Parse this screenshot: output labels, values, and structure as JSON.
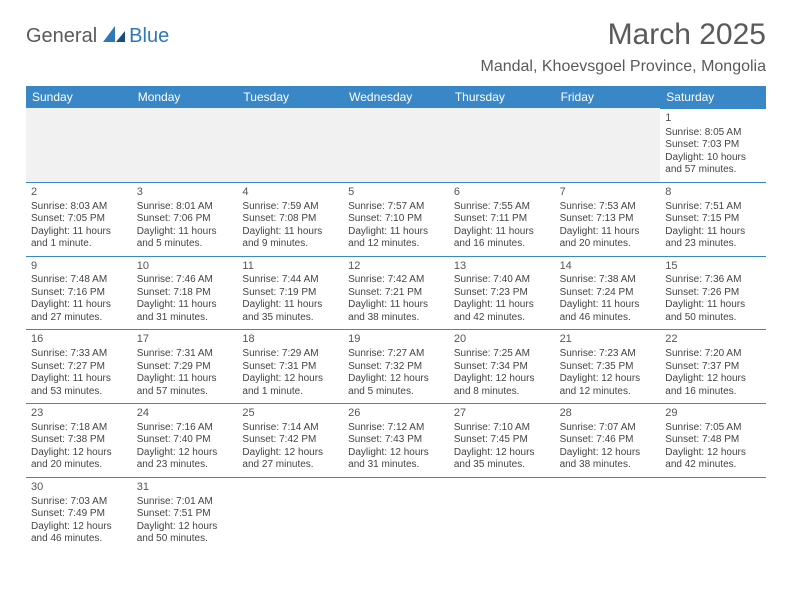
{
  "brand": {
    "part1": "General",
    "part2": "Blue"
  },
  "title": "March 2025",
  "location": "Mandal, Khoevsgoel Province, Mongolia",
  "colors": {
    "header_bg": "#3a87c8",
    "header_text": "#ffffff",
    "cell_border": "#3a87c8",
    "empty_bg": "#f1f1f1",
    "text": "#444444",
    "title_text": "#5a5a5a",
    "brand_blue": "#2f78b7"
  },
  "dayNames": [
    "Sunday",
    "Monday",
    "Tuesday",
    "Wednesday",
    "Thursday",
    "Friday",
    "Saturday"
  ],
  "weeks": [
    [
      null,
      null,
      null,
      null,
      null,
      null,
      {
        "n": "1",
        "sr": "Sunrise: 8:05 AM",
        "ss": "Sunset: 7:03 PM",
        "d1": "Daylight: 10 hours",
        "d2": "and 57 minutes."
      }
    ],
    [
      {
        "n": "2",
        "sr": "Sunrise: 8:03 AM",
        "ss": "Sunset: 7:05 PM",
        "d1": "Daylight: 11 hours",
        "d2": "and 1 minute."
      },
      {
        "n": "3",
        "sr": "Sunrise: 8:01 AM",
        "ss": "Sunset: 7:06 PM",
        "d1": "Daylight: 11 hours",
        "d2": "and 5 minutes."
      },
      {
        "n": "4",
        "sr": "Sunrise: 7:59 AM",
        "ss": "Sunset: 7:08 PM",
        "d1": "Daylight: 11 hours",
        "d2": "and 9 minutes."
      },
      {
        "n": "5",
        "sr": "Sunrise: 7:57 AM",
        "ss": "Sunset: 7:10 PM",
        "d1": "Daylight: 11 hours",
        "d2": "and 12 minutes."
      },
      {
        "n": "6",
        "sr": "Sunrise: 7:55 AM",
        "ss": "Sunset: 7:11 PM",
        "d1": "Daylight: 11 hours",
        "d2": "and 16 minutes."
      },
      {
        "n": "7",
        "sr": "Sunrise: 7:53 AM",
        "ss": "Sunset: 7:13 PM",
        "d1": "Daylight: 11 hours",
        "d2": "and 20 minutes."
      },
      {
        "n": "8",
        "sr": "Sunrise: 7:51 AM",
        "ss": "Sunset: 7:15 PM",
        "d1": "Daylight: 11 hours",
        "d2": "and 23 minutes."
      }
    ],
    [
      {
        "n": "9",
        "sr": "Sunrise: 7:48 AM",
        "ss": "Sunset: 7:16 PM",
        "d1": "Daylight: 11 hours",
        "d2": "and 27 minutes."
      },
      {
        "n": "10",
        "sr": "Sunrise: 7:46 AM",
        "ss": "Sunset: 7:18 PM",
        "d1": "Daylight: 11 hours",
        "d2": "and 31 minutes."
      },
      {
        "n": "11",
        "sr": "Sunrise: 7:44 AM",
        "ss": "Sunset: 7:19 PM",
        "d1": "Daylight: 11 hours",
        "d2": "and 35 minutes."
      },
      {
        "n": "12",
        "sr": "Sunrise: 7:42 AM",
        "ss": "Sunset: 7:21 PM",
        "d1": "Daylight: 11 hours",
        "d2": "and 38 minutes."
      },
      {
        "n": "13",
        "sr": "Sunrise: 7:40 AM",
        "ss": "Sunset: 7:23 PM",
        "d1": "Daylight: 11 hours",
        "d2": "and 42 minutes."
      },
      {
        "n": "14",
        "sr": "Sunrise: 7:38 AM",
        "ss": "Sunset: 7:24 PM",
        "d1": "Daylight: 11 hours",
        "d2": "and 46 minutes."
      },
      {
        "n": "15",
        "sr": "Sunrise: 7:36 AM",
        "ss": "Sunset: 7:26 PM",
        "d1": "Daylight: 11 hours",
        "d2": "and 50 minutes."
      }
    ],
    [
      {
        "n": "16",
        "sr": "Sunrise: 7:33 AM",
        "ss": "Sunset: 7:27 PM",
        "d1": "Daylight: 11 hours",
        "d2": "and 53 minutes."
      },
      {
        "n": "17",
        "sr": "Sunrise: 7:31 AM",
        "ss": "Sunset: 7:29 PM",
        "d1": "Daylight: 11 hours",
        "d2": "and 57 minutes."
      },
      {
        "n": "18",
        "sr": "Sunrise: 7:29 AM",
        "ss": "Sunset: 7:31 PM",
        "d1": "Daylight: 12 hours",
        "d2": "and 1 minute."
      },
      {
        "n": "19",
        "sr": "Sunrise: 7:27 AM",
        "ss": "Sunset: 7:32 PM",
        "d1": "Daylight: 12 hours",
        "d2": "and 5 minutes."
      },
      {
        "n": "20",
        "sr": "Sunrise: 7:25 AM",
        "ss": "Sunset: 7:34 PM",
        "d1": "Daylight: 12 hours",
        "d2": "and 8 minutes."
      },
      {
        "n": "21",
        "sr": "Sunrise: 7:23 AM",
        "ss": "Sunset: 7:35 PM",
        "d1": "Daylight: 12 hours",
        "d2": "and 12 minutes."
      },
      {
        "n": "22",
        "sr": "Sunrise: 7:20 AM",
        "ss": "Sunset: 7:37 PM",
        "d1": "Daylight: 12 hours",
        "d2": "and 16 minutes."
      }
    ],
    [
      {
        "n": "23",
        "sr": "Sunrise: 7:18 AM",
        "ss": "Sunset: 7:38 PM",
        "d1": "Daylight: 12 hours",
        "d2": "and 20 minutes."
      },
      {
        "n": "24",
        "sr": "Sunrise: 7:16 AM",
        "ss": "Sunset: 7:40 PM",
        "d1": "Daylight: 12 hours",
        "d2": "and 23 minutes."
      },
      {
        "n": "25",
        "sr": "Sunrise: 7:14 AM",
        "ss": "Sunset: 7:42 PM",
        "d1": "Daylight: 12 hours",
        "d2": "and 27 minutes."
      },
      {
        "n": "26",
        "sr": "Sunrise: 7:12 AM",
        "ss": "Sunset: 7:43 PM",
        "d1": "Daylight: 12 hours",
        "d2": "and 31 minutes."
      },
      {
        "n": "27",
        "sr": "Sunrise: 7:10 AM",
        "ss": "Sunset: 7:45 PM",
        "d1": "Daylight: 12 hours",
        "d2": "and 35 minutes."
      },
      {
        "n": "28",
        "sr": "Sunrise: 7:07 AM",
        "ss": "Sunset: 7:46 PM",
        "d1": "Daylight: 12 hours",
        "d2": "and 38 minutes."
      },
      {
        "n": "29",
        "sr": "Sunrise: 7:05 AM",
        "ss": "Sunset: 7:48 PM",
        "d1": "Daylight: 12 hours",
        "d2": "and 42 minutes."
      }
    ],
    [
      {
        "n": "30",
        "sr": "Sunrise: 7:03 AM",
        "ss": "Sunset: 7:49 PM",
        "d1": "Daylight: 12 hours",
        "d2": "and 46 minutes."
      },
      {
        "n": "31",
        "sr": "Sunrise: 7:01 AM",
        "ss": "Sunset: 7:51 PM",
        "d1": "Daylight: 12 hours",
        "d2": "and 50 minutes."
      },
      null,
      null,
      null,
      null,
      null
    ]
  ]
}
